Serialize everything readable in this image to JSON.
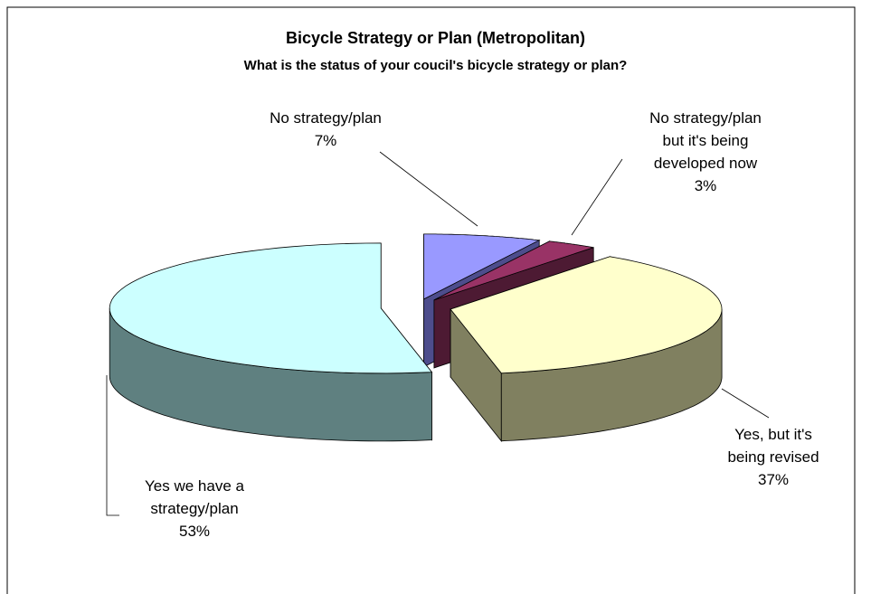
{
  "chart_data": {
    "type": "pie",
    "title": "Bicycle Strategy or Plan (Metropolitan)",
    "subtitle": "What is the status of your coucil's bicycle strategy or plan?",
    "categories": [
      "No strategy/plan",
      "No strategy/plan but it's being developed now",
      "Yes, but it's being revised",
      "Yes we have a strategy/plan"
    ],
    "values": [
      7,
      3,
      37,
      53
    ],
    "value_labels": [
      "7%",
      "3%",
      "37%",
      "53%"
    ],
    "colors": [
      "#9999ff",
      "#993366",
      "#ffffcc",
      "#ccffff"
    ],
    "side_colors": [
      "#4d4d8c",
      "#4d1a33",
      "#808060",
      "#5f8080"
    ]
  }
}
